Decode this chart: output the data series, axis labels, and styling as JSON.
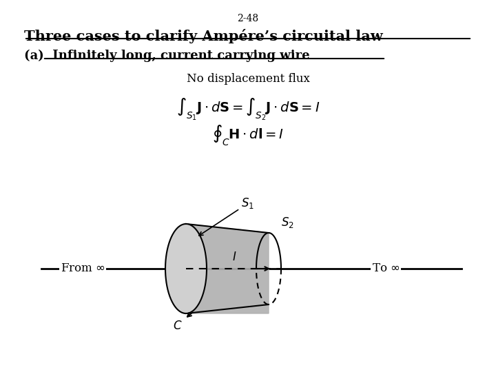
{
  "slide_number": "2-48",
  "title": "Three cases to clarify Ampére’s circuital law",
  "subtitle": "(a)  Infinitely long, current carrying wire",
  "no_disp_flux": "No displacement flux",
  "eq1": "$\\int_{S_1} \\mathbf{J} \\cdot d\\mathbf{S} = \\int_{S_2} \\mathbf{J} \\cdot d\\mathbf{S} = I$",
  "eq2": "$\\oint_{C} \\mathbf{H} \\cdot d\\mathbf{l} = I$",
  "label_from": "From $\\infty$",
  "label_to": "To $\\infty$",
  "label_S1": "$S_1$",
  "label_S2": "$S_2$",
  "label_I": "$I$",
  "label_C": "$C$",
  "bg_color": "#ffffff",
  "text_color": "#000000",
  "gray_fill": "#c8c8c8",
  "wire_color": "#000000"
}
